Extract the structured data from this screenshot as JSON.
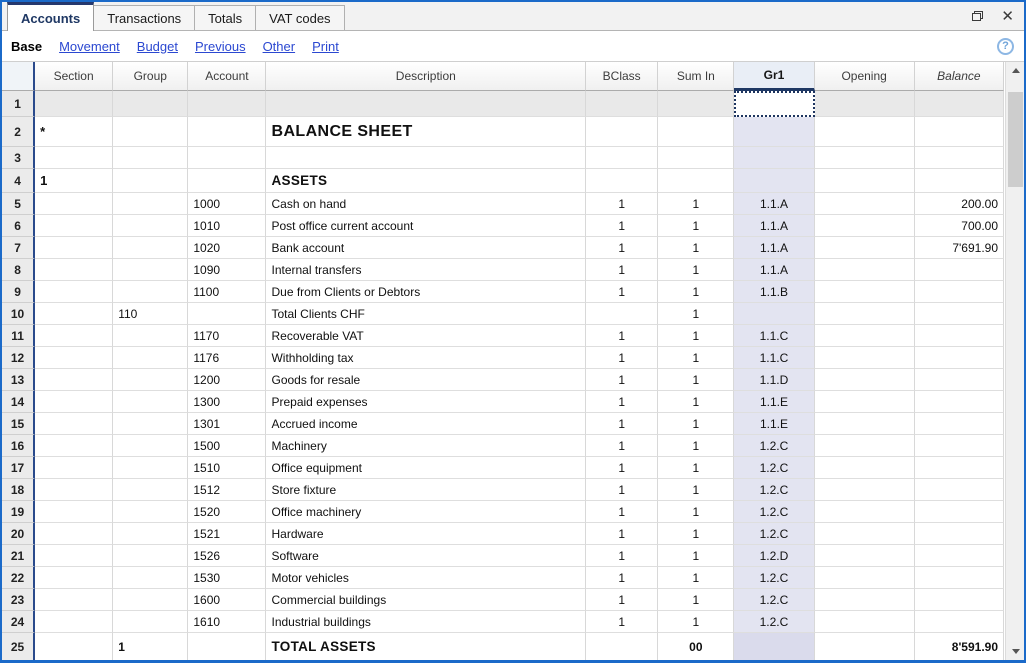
{
  "tabs": [
    {
      "label": "Accounts",
      "active": true
    },
    {
      "label": "Transactions",
      "active": false
    },
    {
      "label": "Totals",
      "active": false
    },
    {
      "label": "VAT codes",
      "active": false
    }
  ],
  "toolbar": {
    "base_label": "Base",
    "links": [
      "Movement",
      "Budget",
      "Previous",
      "Other",
      "Print"
    ]
  },
  "icons": {
    "close": "✕",
    "help": "?"
  },
  "colors": {
    "window_border": "#1b6ac9",
    "accent_navy": "#1f3864",
    "selected_column": "#e3e4f1",
    "selected_row": "#e9e9e9",
    "link_blue": "#2b48d1"
  },
  "selection": {
    "row": 1,
    "column": "Gr1",
    "column_key": "gr1"
  },
  "table": {
    "columns": [
      {
        "key": "num",
        "label": ""
      },
      {
        "key": "section",
        "label": "Section"
      },
      {
        "key": "group",
        "label": "Group"
      },
      {
        "key": "account",
        "label": "Account"
      },
      {
        "key": "description",
        "label": "Description"
      },
      {
        "key": "bclass",
        "label": "BClass"
      },
      {
        "key": "sumin",
        "label": "Sum In"
      },
      {
        "key": "gr1",
        "label": "Gr1"
      },
      {
        "key": "opening",
        "label": "Opening"
      },
      {
        "key": "balance",
        "label": "Balance"
      }
    ],
    "rows": [
      {
        "num": 1
      },
      {
        "num": 2,
        "section": "*",
        "description": "BALANCE SHEET",
        "style": "title"
      },
      {
        "num": 3
      },
      {
        "num": 4,
        "section": "1",
        "description": "ASSETS",
        "style": "heading"
      },
      {
        "num": 5,
        "account": "1000",
        "description": "Cash on hand",
        "bclass": "1",
        "sumin": "1",
        "gr1": "1.1.A",
        "balance": "200.00"
      },
      {
        "num": 6,
        "account": "1010",
        "description": "Post office current account",
        "bclass": "1",
        "sumin": "1",
        "gr1": "1.1.A",
        "balance": "700.00"
      },
      {
        "num": 7,
        "account": "1020",
        "description": "Bank account",
        "bclass": "1",
        "sumin": "1",
        "gr1": "1.1.A",
        "balance": "7'691.90"
      },
      {
        "num": 8,
        "account": "1090",
        "description": "Internal transfers",
        "bclass": "1",
        "sumin": "1",
        "gr1": "1.1.A"
      },
      {
        "num": 9,
        "account": "1100",
        "description": "Due from Clients or Debtors",
        "bclass": "1",
        "sumin": "1",
        "gr1": "1.1.B"
      },
      {
        "num": 10,
        "group": "110",
        "description": "Total Clients CHF",
        "sumin": "1"
      },
      {
        "num": 11,
        "account": "1170",
        "description": "Recoverable VAT",
        "bclass": "1",
        "sumin": "1",
        "gr1": "1.1.C"
      },
      {
        "num": 12,
        "account": "1176",
        "description": "Withholding tax",
        "bclass": "1",
        "sumin": "1",
        "gr1": "1.1.C"
      },
      {
        "num": 13,
        "account": "1200",
        "description": "Goods for resale",
        "bclass": "1",
        "sumin": "1",
        "gr1": "1.1.D"
      },
      {
        "num": 14,
        "account": "1300",
        "description": "Prepaid expenses",
        "bclass": "1",
        "sumin": "1",
        "gr1": "1.1.E"
      },
      {
        "num": 15,
        "account": "1301",
        "description": "Accrued income",
        "bclass": "1",
        "sumin": "1",
        "gr1": "1.1.E"
      },
      {
        "num": 16,
        "account": "1500",
        "description": "Machinery",
        "bclass": "1",
        "sumin": "1",
        "gr1": "1.2.C"
      },
      {
        "num": 17,
        "account": "1510",
        "description": "Office equipment",
        "bclass": "1",
        "sumin": "1",
        "gr1": "1.2.C"
      },
      {
        "num": 18,
        "account": "1512",
        "description": "Store fixture",
        "bclass": "1",
        "sumin": "1",
        "gr1": "1.2.C"
      },
      {
        "num": 19,
        "account": "1520",
        "description": "Office machinery",
        "bclass": "1",
        "sumin": "1",
        "gr1": "1.2.C"
      },
      {
        "num": 20,
        "account": "1521",
        "description": "Hardware",
        "bclass": "1",
        "sumin": "1",
        "gr1": "1.2.C"
      },
      {
        "num": 21,
        "account": "1526",
        "description": "Software",
        "bclass": "1",
        "sumin": "1",
        "gr1": "1.2.D"
      },
      {
        "num": 22,
        "account": "1530",
        "description": "Motor vehicles",
        "bclass": "1",
        "sumin": "1",
        "gr1": "1.2.C"
      },
      {
        "num": 23,
        "account": "1600",
        "description": "Commercial buildings",
        "bclass": "1",
        "sumin": "1",
        "gr1": "1.2.C"
      },
      {
        "num": 24,
        "account": "1610",
        "description": "Industrial buildings",
        "bclass": "1",
        "sumin": "1",
        "gr1": "1.2.C"
      },
      {
        "num": 25,
        "group": "1",
        "description": "TOTAL ASSETS",
        "sumin": "00",
        "balance": "8'591.90",
        "style": "total"
      }
    ]
  }
}
